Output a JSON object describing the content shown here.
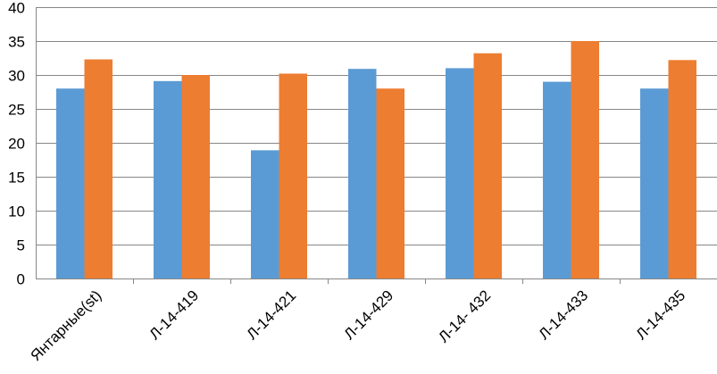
{
  "chart_data": {
    "type": "bar",
    "categories": [
      "Янтарные(st)",
      "Л-14-419",
      "Л-14-421",
      "Л-14-429",
      "Л-14- 432",
      "Л-14-433",
      "Л-14-435"
    ],
    "series": [
      {
        "values": [
          28,
          29.1,
          18.9,
          30.9,
          31,
          29,
          28
        ],
        "color": "#5B9BD5"
      },
      {
        "values": [
          32.3,
          30,
          30.2,
          28,
          33.2,
          35,
          32.2
        ],
        "color": "#ED7D31"
      }
    ],
    "ylim": [
      0,
      40
    ],
    "yticks": [
      0,
      5,
      10,
      15,
      20,
      25,
      30,
      35,
      40
    ],
    "grid": true,
    "legend": "none",
    "title": "",
    "xlabel": "",
    "ylabel": ""
  }
}
